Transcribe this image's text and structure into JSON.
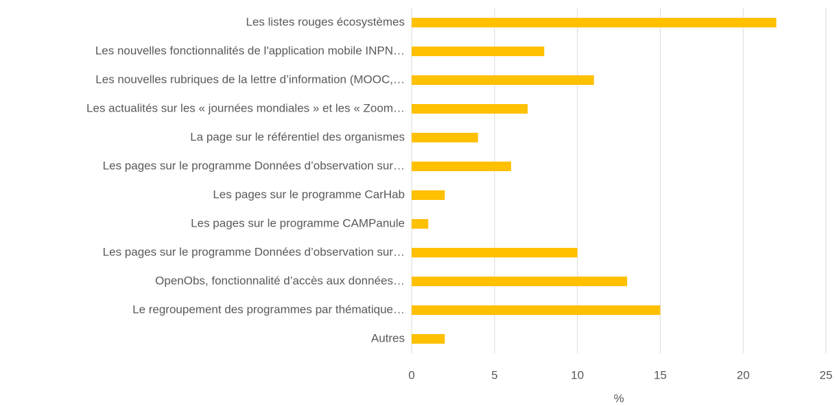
{
  "chart_data": {
    "type": "hbar",
    "categories": [
      "Les listes rouges écosystèmes",
      "Les nouvelles fonctionnalités de l'application mobile INPN…",
      "Les nouvelles rubriques de la lettre d’information (MOOC,…",
      "Les actualités sur les « journées mondiales » et les « Zoom…",
      "La page sur le référentiel des organismes",
      "Les pages sur le programme Données d’observation sur…",
      "Les pages sur le programme CarHab",
      "Les pages sur le programme CAMPanule",
      "Les pages sur le programme Données d’observation sur…",
      "OpenObs, fonctionnalité d’accès aux données…",
      "Le regroupement des programmes par thématique…",
      "Autres"
    ],
    "values": [
      22,
      8,
      11,
      7,
      4,
      6,
      2,
      1,
      10,
      13,
      15,
      2
    ],
    "color": "#ffc000",
    "xlabel": "%",
    "xlim": [
      0,
      25
    ],
    "xticks": [
      0,
      5,
      10,
      15,
      20,
      25
    ],
    "grid": true
  }
}
